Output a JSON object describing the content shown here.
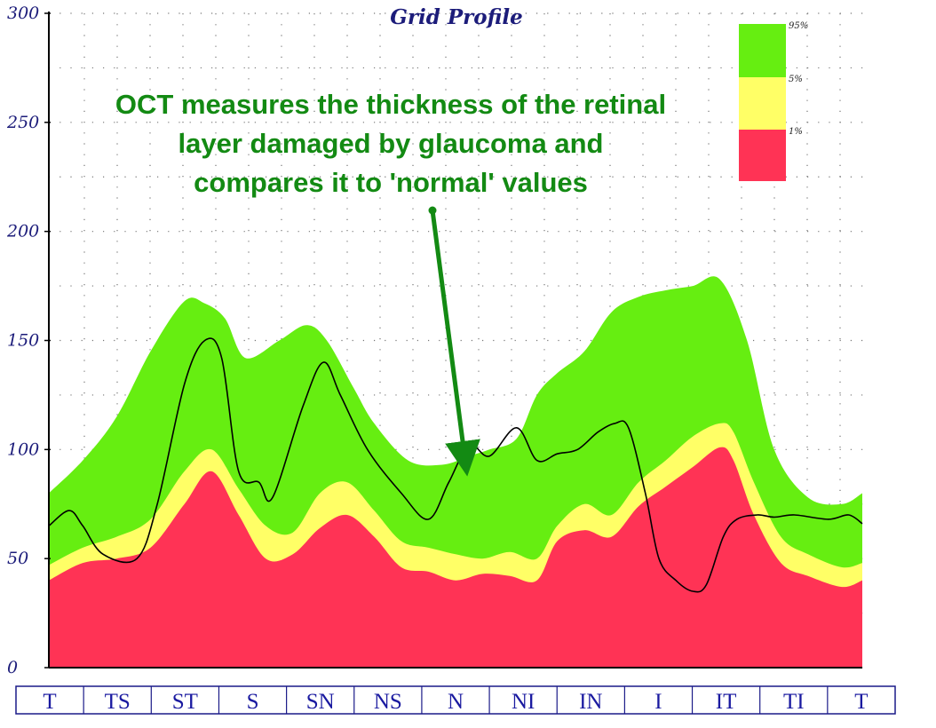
{
  "chart_data": {
    "type": "area",
    "title": "Grid Profile",
    "ylim": [
      0,
      300
    ],
    "y_ticks": [
      0,
      50,
      100,
      150,
      200,
      250,
      300
    ],
    "categories": [
      "T",
      "TS",
      "ST",
      "S",
      "SN",
      "NS",
      "N",
      "NI",
      "IN",
      "I",
      "IT",
      "TI",
      "T"
    ],
    "grid": "dotted",
    "legend": {
      "placement": "top-right",
      "entries": [
        {
          "label": "95%",
          "color": "#66ee11"
        },
        {
          "label": "5%",
          "color": "#ffff66"
        },
        {
          "label": "1%",
          "color": "#ff3355"
        }
      ]
    },
    "annotation": {
      "lines": [
        "OCT measures the thickness of the retinal",
        "layer damaged by glaucoma and",
        "compares it to 'normal' values"
      ],
      "color": "#138a13",
      "points_to": {
        "x": 6.2,
        "y": 88
      }
    },
    "series": [
      {
        "role": "band-95",
        "color": "#66ee11",
        "x": [
          0,
          0.5,
          1,
          1.5,
          2,
          2.3,
          2.6,
          2.9,
          3.4,
          3.8,
          4.1,
          4.5,
          4.8,
          5.3,
          5.8,
          6.2,
          6.5,
          6.9,
          7.2,
          7.5,
          7.9,
          8.3,
          8.7,
          9.1,
          9.5,
          9.9,
          10.3,
          10.7,
          11.2,
          11.7,
          12
        ],
        "y": [
          80,
          95,
          115,
          145,
          168,
          167,
          160,
          142,
          150,
          157,
          150,
          128,
          112,
          95,
          93,
          97,
          100,
          105,
          125,
          135,
          145,
          163,
          170,
          173,
          175,
          178,
          150,
          100,
          78,
          75,
          80
        ]
      },
      {
        "role": "band-5",
        "color": "#ffff66",
        "x": [
          0,
          0.5,
          1,
          1.5,
          2,
          2.4,
          2.8,
          3.2,
          3.6,
          4,
          4.4,
          4.8,
          5.2,
          5.6,
          6,
          6.4,
          6.8,
          7.2,
          7.5,
          7.9,
          8.3,
          8.7,
          9.1,
          9.5,
          9.9,
          10.1,
          10.4,
          10.8,
          11.2,
          11.7,
          12
        ],
        "y": [
          47,
          55,
          60,
          68,
          90,
          100,
          82,
          65,
          62,
          80,
          85,
          72,
          58,
          55,
          52,
          50,
          53,
          50,
          65,
          75,
          70,
          85,
          95,
          106,
          112,
          108,
          85,
          60,
          52,
          46,
          48
        ]
      },
      {
        "role": "band-1",
        "color": "#ff3355",
        "x": [
          0,
          0.5,
          1,
          1.5,
          2,
          2.4,
          2.8,
          3.2,
          3.6,
          4,
          4.4,
          4.8,
          5.2,
          5.6,
          6,
          6.4,
          6.8,
          7.2,
          7.5,
          7.9,
          8.3,
          8.7,
          9.1,
          9.5,
          9.9,
          10.1,
          10.4,
          10.8,
          11.2,
          11.7,
          12
        ],
        "y": [
          40,
          48,
          50,
          55,
          75,
          90,
          70,
          50,
          52,
          64,
          70,
          60,
          46,
          44,
          40,
          43,
          42,
          40,
          58,
          63,
          60,
          74,
          83,
          92,
          101,
          95,
          70,
          48,
          42,
          37,
          40
        ]
      },
      {
        "role": "measured",
        "color": "#000000",
        "x": [
          0,
          0.3,
          0.5,
          0.8,
          1.3,
          1.6,
          2,
          2.3,
          2.55,
          2.8,
          3.1,
          3.3,
          3.75,
          4.05,
          4.3,
          4.7,
          5.2,
          5.6,
          5.9,
          6.2,
          6.5,
          6.9,
          7.2,
          7.5,
          7.8,
          8.1,
          8.35,
          8.55,
          8.8,
          9,
          9.25,
          9.5,
          9.7,
          9.95,
          10.15,
          10.45,
          10.7,
          11,
          11.5,
          11.8,
          12
        ],
        "y": [
          65,
          72,
          65,
          52,
          50,
          75,
          130,
          150,
          142,
          90,
          85,
          78,
          120,
          140,
          125,
          100,
          80,
          68,
          85,
          102,
          97,
          110,
          95,
          98,
          100,
          108,
          112,
          110,
          80,
          50,
          40,
          35,
          38,
          60,
          68,
          70,
          69,
          70,
          68,
          70,
          66
        ]
      }
    ]
  }
}
